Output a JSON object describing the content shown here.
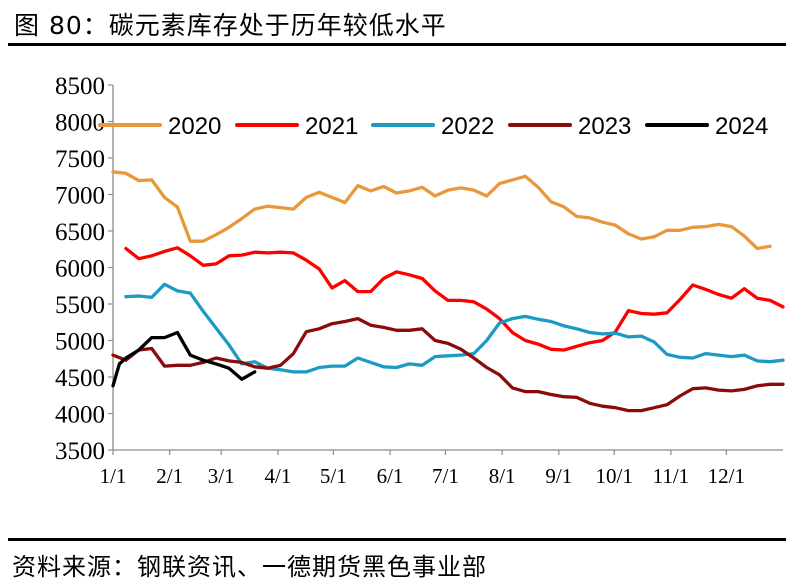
{
  "figure": {
    "title": "图 80：碳元素库存处于历年较低水平",
    "source": "资料来源：钢联资讯、一德期货黑色事业部"
  },
  "chart_data": {
    "type": "line",
    "title": "碳元素库存处于历年较低水平",
    "xlabel": "",
    "ylabel": "",
    "ylim": [
      3500,
      8500
    ],
    "yticks": [
      3500,
      4000,
      4500,
      5000,
      5500,
      6000,
      6500,
      7000,
      7500,
      8000,
      8500
    ],
    "x_unit": "week",
    "xlim": [
      1,
      53
    ],
    "xtick_labels": [
      "1/1",
      "2/1",
      "3/1",
      "4/1",
      "5/1",
      "6/1",
      "7/1",
      "8/1",
      "9/1",
      "10/1",
      "11/1",
      "12/1"
    ],
    "xtick_weeks": [
      1,
      5.4,
      9.4,
      13.8,
      18.1,
      22.5,
      26.8,
      31.2,
      35.6,
      39.9,
      44.3,
      48.6
    ],
    "legend_position": "top",
    "grid": false,
    "series": [
      {
        "name": "2020",
        "color": "#E8973B",
        "x": [
          1,
          2,
          3,
          4,
          5,
          6,
          7,
          8,
          9,
          10,
          11,
          12,
          13,
          14,
          15,
          16,
          17,
          18,
          19,
          20,
          21,
          22,
          23,
          24,
          25,
          26,
          27,
          28,
          29,
          30,
          31,
          32,
          33,
          34,
          35,
          36,
          37,
          38,
          39,
          40,
          41,
          42,
          43,
          44,
          45,
          46,
          47,
          48,
          49,
          50,
          51,
          52
        ],
        "values": [
          7310,
          7290,
          7190,
          7200,
          6960,
          6830,
          6360,
          6360,
          6450,
          6550,
          6670,
          6800,
          6840,
          6820,
          6800,
          6960,
          7030,
          6960,
          6890,
          7120,
          7050,
          7110,
          7020,
          7050,
          7100,
          6980,
          7060,
          7090,
          7060,
          6980,
          7150,
          7200,
          7250,
          7100,
          6900,
          6830,
          6700,
          6680,
          6620,
          6580,
          6460,
          6390,
          6420,
          6510,
          6510,
          6550,
          6560,
          6590,
          6560,
          6430,
          6260,
          6290
        ]
      },
      {
        "name": "2021",
        "color": "#FF0000",
        "x": [
          2,
          3,
          4,
          5,
          6,
          7,
          8,
          9,
          10,
          11,
          12,
          13,
          14,
          15,
          16,
          17,
          18,
          19,
          20,
          21,
          22,
          23,
          24,
          25,
          26,
          27,
          28,
          29,
          30,
          31,
          32,
          33,
          34,
          35,
          36,
          37,
          38,
          39,
          40,
          41,
          42,
          43,
          44,
          45,
          46,
          47,
          48,
          49,
          50,
          51,
          52,
          53
        ],
        "values": [
          6260,
          6120,
          6160,
          6220,
          6270,
          6160,
          6030,
          6050,
          6160,
          6170,
          6210,
          6200,
          6210,
          6200,
          6100,
          5980,
          5720,
          5820,
          5670,
          5670,
          5850,
          5940,
          5900,
          5850,
          5680,
          5550,
          5550,
          5530,
          5430,
          5300,
          5110,
          5000,
          4950,
          4880,
          4870,
          4920,
          4970,
          5000,
          5120,
          5410,
          5370,
          5360,
          5380,
          5560,
          5760,
          5700,
          5630,
          5580,
          5710,
          5580,
          5550,
          5460
        ]
      },
      {
        "name": "2022",
        "color": "#1B9BC4",
        "x": [
          2,
          3,
          4,
          5,
          6,
          7,
          8,
          9,
          10,
          11,
          12,
          13,
          14,
          15,
          16,
          17,
          18,
          19,
          20,
          21,
          22,
          23,
          24,
          25,
          26,
          27,
          28,
          29,
          30,
          31,
          32,
          33,
          34,
          35,
          36,
          37,
          38,
          39,
          40,
          41,
          42,
          43,
          44,
          45,
          46,
          47,
          48,
          49,
          50,
          51,
          52,
          53
        ],
        "values": [
          5600,
          5610,
          5590,
          5770,
          5680,
          5650,
          5400,
          5170,
          4940,
          4680,
          4710,
          4620,
          4600,
          4570,
          4570,
          4630,
          4650,
          4650,
          4760,
          4700,
          4640,
          4630,
          4680,
          4660,
          4780,
          4790,
          4800,
          4820,
          5000,
          5240,
          5300,
          5330,
          5290,
          5260,
          5200,
          5160,
          5110,
          5090,
          5100,
          5050,
          5060,
          4980,
          4810,
          4770,
          4760,
          4820,
          4800,
          4780,
          4800,
          4720,
          4710,
          4730
        ]
      },
      {
        "name": "2023",
        "color": "#8B0A0A",
        "x": [
          1,
          2,
          3,
          4,
          5,
          6,
          7,
          8,
          9,
          10,
          11,
          12,
          13,
          14,
          15,
          16,
          17,
          18,
          19,
          20,
          21,
          22,
          23,
          24,
          25,
          26,
          27,
          28,
          29,
          30,
          31,
          32,
          33,
          34,
          35,
          36,
          37,
          38,
          39,
          40,
          41,
          42,
          43,
          44,
          45,
          46,
          47,
          48,
          49,
          50,
          51,
          52,
          53
        ],
        "values": [
          4800,
          4730,
          4870,
          4890,
          4650,
          4660,
          4660,
          4700,
          4760,
          4720,
          4700,
          4640,
          4620,
          4660,
          4820,
          5120,
          5160,
          5230,
          5260,
          5300,
          5210,
          5180,
          5140,
          5140,
          5160,
          5000,
          4960,
          4880,
          4760,
          4630,
          4530,
          4350,
          4300,
          4300,
          4260,
          4230,
          4220,
          4140,
          4100,
          4080,
          4040,
          4040,
          4080,
          4120,
          4240,
          4340,
          4350,
          4320,
          4310,
          4330,
          4380,
          4400,
          4400
        ]
      },
      {
        "name": "2024",
        "color": "#000000",
        "x": [
          1,
          1.5,
          2,
          3,
          4,
          5,
          6,
          7,
          8,
          9,
          10,
          11,
          12
        ],
        "values": [
          4380,
          4680,
          4760,
          4870,
          5040,
          5040,
          5110,
          4800,
          4730,
          4680,
          4620,
          4470,
          4570
        ]
      }
    ]
  }
}
